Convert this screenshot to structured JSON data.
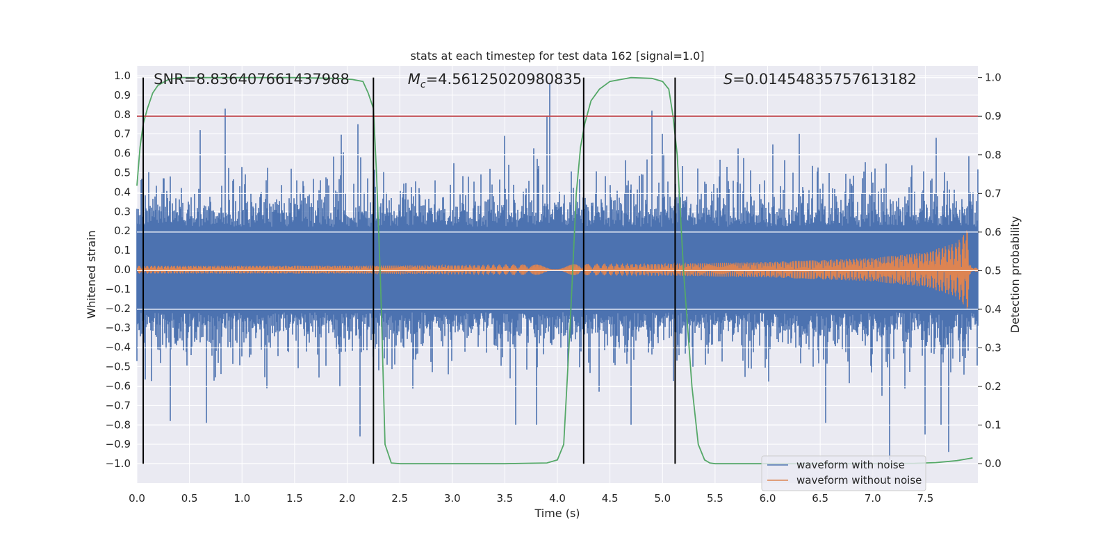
{
  "chart_data": {
    "type": "line",
    "title": "stats at each timestep for test data 162 [signal=1.0]",
    "xlabel": "Time (s)",
    "ylabel": "Whitened strain",
    "ylabel_right": "Detection probability",
    "xlim": [
      0.0,
      8.0
    ],
    "ylim": [
      -1.1,
      1.05
    ],
    "ylim_right": [
      -0.05,
      1.03
    ],
    "xticks": [
      0.0,
      0.5,
      1.0,
      1.5,
      2.0,
      2.5,
      3.0,
      3.5,
      4.0,
      4.5,
      5.0,
      5.5,
      6.0,
      6.5,
      7.0,
      7.5
    ],
    "xtick_labels": [
      "0.0",
      "0.5",
      "1.0",
      "1.5",
      "2.0",
      "2.5",
      "3.0",
      "3.5",
      "4.0",
      "4.5",
      "5.0",
      "5.5",
      "6.0",
      "6.5",
      "7.0",
      "7.5"
    ],
    "yticks": [
      1.0,
      0.9,
      0.8,
      0.7,
      0.6,
      0.5,
      0.4,
      0.3,
      0.2,
      0.1,
      0.0,
      -0.1,
      -0.2,
      -0.3,
      -0.4,
      -0.5,
      -0.6,
      -0.7,
      -0.8,
      -0.9,
      -1.0
    ],
    "ytick_labels": [
      "1.0",
      "0.9",
      "0.8",
      "0.7",
      "0.6",
      "0.5",
      "0.4",
      "0.3",
      "0.2",
      "0.1",
      "0.0",
      "−0.1",
      "−0.2",
      "−0.3",
      "−0.4",
      "−0.5",
      "−0.6",
      "−0.7",
      "−0.8",
      "−0.9",
      "−1.0"
    ],
    "yticks_right": [
      1.0,
      0.9,
      0.8,
      0.7,
      0.6,
      0.5,
      0.4,
      0.3,
      0.2,
      0.1,
      0.0
    ],
    "ytick_labels_right": [
      "1.0",
      "0.9",
      "0.8",
      "0.7",
      "0.6",
      "0.5",
      "0.4",
      "0.3",
      "0.2",
      "0.1",
      "0.0"
    ],
    "threshold": 0.9,
    "vertical_markers": [
      0.06,
      2.25,
      4.25,
      5.12
    ],
    "annotations": {
      "snr": "SNR=8.836407661437988",
      "mc_prefix": "M",
      "mc_sub": "c",
      "mc_value": "=4.56125020980835",
      "s_prefix": "S",
      "s_value": "=0.01454835757613182"
    },
    "legend": {
      "position": "lower-right",
      "entries": [
        "waveform with noise",
        "waveform without noise"
      ]
    },
    "series": [
      {
        "name": "waveform with noise",
        "color": "#4c72b0",
        "description": "noisy whitened strain, envelope approx +-0.4 with spikes",
        "spikes": [
          [
            0.84,
            0.83
          ],
          [
            3.93,
            0.96
          ],
          [
            3.9,
            0.79
          ],
          [
            4.9,
            0.82
          ],
          [
            2.1,
            0.75
          ],
          [
            0.6,
            0.72
          ],
          [
            5.0,
            0.7
          ],
          [
            7.6,
            0.68
          ],
          [
            3.5,
            0.69
          ],
          [
            6.3,
            0.7
          ],
          [
            7.16,
            -0.98
          ],
          [
            7.72,
            -0.94
          ],
          [
            2.12,
            -0.86
          ],
          [
            0.32,
            -0.78
          ],
          [
            0.66,
            -0.79
          ],
          [
            3.6,
            -0.8
          ],
          [
            3.8,
            -0.8
          ],
          [
            4.7,
            -0.8
          ],
          [
            6.55,
            -0.79
          ],
          [
            7.5,
            -0.85
          ],
          [
            7.65,
            -0.8
          ]
        ]
      },
      {
        "name": "waveform without noise",
        "color": "#dd8452",
        "description": "chirp signal, amplitude rising from 0.02 to 0.21 at t=7.9 s",
        "envelope": [
          [
            0.0,
            0.02
          ],
          [
            2.0,
            0.02
          ],
          [
            4.0,
            0.025
          ],
          [
            5.0,
            0.03
          ],
          [
            6.0,
            0.04
          ],
          [
            7.0,
            0.06
          ],
          [
            7.5,
            0.09
          ],
          [
            7.8,
            0.14
          ],
          [
            7.9,
            0.21
          ],
          [
            7.93,
            0.01
          ],
          [
            8.0,
            0.01
          ]
        ]
      },
      {
        "name": "detection probability",
        "color": "#55a868",
        "axis": "right",
        "x": [
          0.0,
          0.03,
          0.06,
          0.1,
          0.15,
          0.2,
          0.3,
          0.4,
          0.6,
          1.0,
          1.5,
          1.9,
          2.05,
          2.15,
          2.2,
          2.25,
          2.28,
          2.32,
          2.36,
          2.42,
          2.5,
          3.0,
          3.5,
          3.9,
          4.0,
          4.06,
          4.12,
          4.18,
          4.22,
          4.26,
          4.32,
          4.4,
          4.5,
          4.7,
          4.9,
          5.0,
          5.06,
          5.1,
          5.14,
          5.2,
          5.28,
          5.34,
          5.4,
          5.45,
          5.5,
          6.0,
          6.5,
          7.0,
          7.4,
          7.6,
          7.8,
          7.95
        ],
        "values": [
          0.72,
          0.82,
          0.88,
          0.92,
          0.96,
          0.98,
          0.995,
          1.0,
          1.0,
          1.0,
          1.0,
          0.998,
          0.995,
          0.99,
          0.96,
          0.92,
          0.75,
          0.45,
          0.05,
          0.002,
          0.0,
          0.0,
          0.0,
          0.002,
          0.01,
          0.05,
          0.35,
          0.7,
          0.82,
          0.88,
          0.94,
          0.97,
          0.99,
          1.0,
          0.998,
          0.99,
          0.97,
          0.9,
          0.8,
          0.5,
          0.2,
          0.05,
          0.01,
          0.002,
          0.0,
          0.0,
          0.0,
          0.0,
          0.001,
          0.003,
          0.008,
          0.015
        ]
      }
    ]
  }
}
